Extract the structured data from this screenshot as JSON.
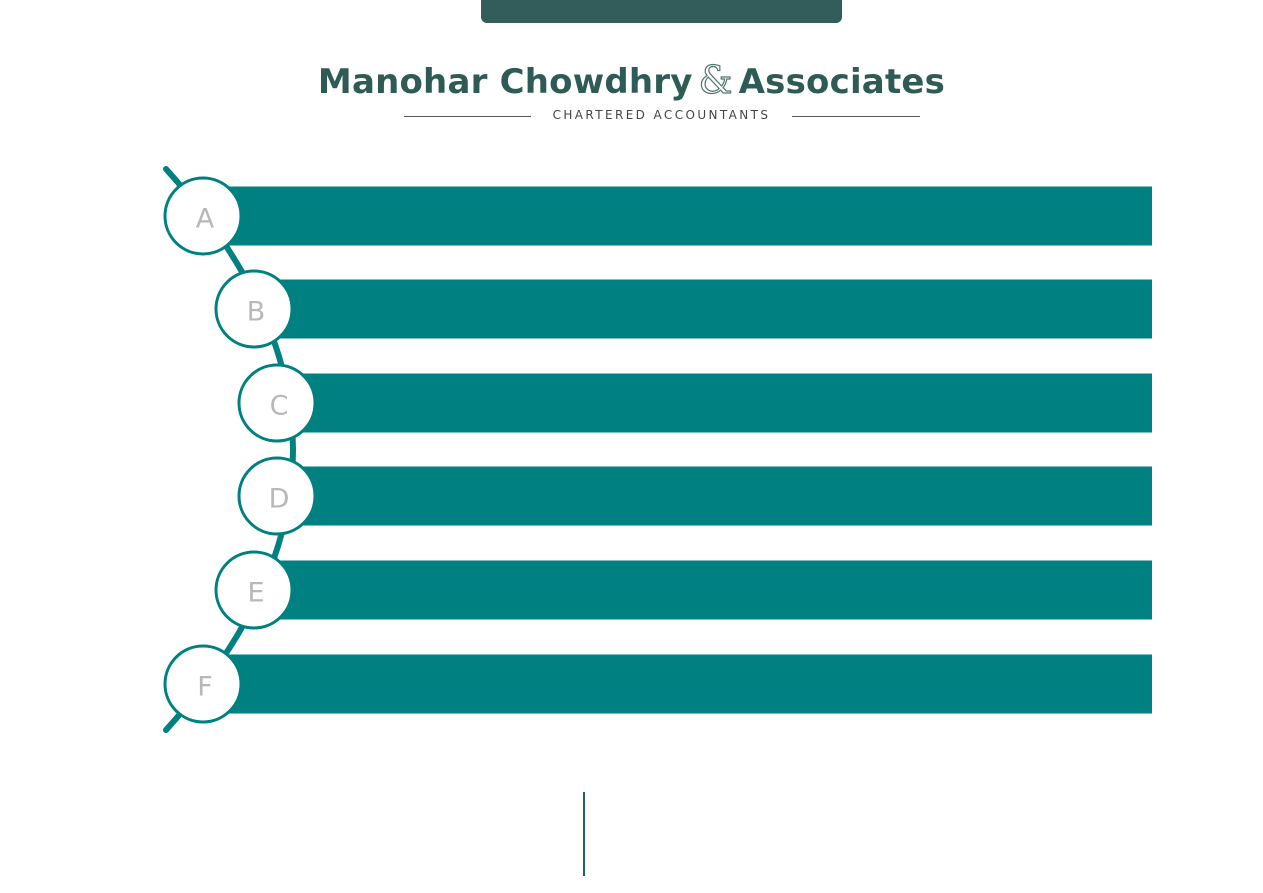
{
  "logo": {
    "name_part1": "Manohar Chowdhry",
    "ampersand": "&",
    "name_part2": "Associates",
    "tagline": "CHARTERED ACCOUNTANTS"
  },
  "diagram": {
    "items": [
      {
        "letter": "A"
      },
      {
        "letter": "B"
      },
      {
        "letter": "C"
      },
      {
        "letter": "D"
      },
      {
        "letter": "E"
      },
      {
        "letter": "F"
      }
    ]
  },
  "colors": {
    "brand_dark": "#2f5b56",
    "tab": "#335d5a",
    "bar": "#008080",
    "letter": "#b8b8b8"
  }
}
